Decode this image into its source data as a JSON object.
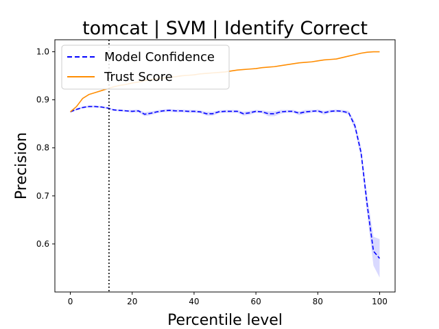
{
  "chart_data": {
    "type": "line",
    "title": "tomcat | SVM | Identify Correct",
    "xlabel": "Percentile level",
    "ylabel": "Precision",
    "xlim": [
      -5,
      105
    ],
    "ylim": [
      0.5,
      1.025
    ],
    "xticks": [
      0,
      20,
      40,
      60,
      80,
      100
    ],
    "yticks": [
      0.6,
      0.7,
      0.8,
      0.9,
      1.0
    ],
    "ytick_labels": [
      "0.6",
      "0.7",
      "0.8",
      "0.9",
      "1.0"
    ],
    "grid": false,
    "legend_position": "top-left",
    "vline_x": 12.5,
    "series": [
      {
        "name": "Model Confidence",
        "color": "#0000ff",
        "linestyle": "dashed",
        "band_color": "#0000ff",
        "x": [
          0,
          2,
          4,
          6,
          8,
          10,
          12,
          14,
          16,
          18,
          20,
          22,
          24,
          26,
          28,
          30,
          32,
          34,
          36,
          38,
          40,
          42,
          44,
          46,
          48,
          50,
          52,
          54,
          56,
          58,
          60,
          62,
          64,
          66,
          68,
          70,
          72,
          74,
          76,
          78,
          80,
          82,
          84,
          86,
          88,
          90,
          92,
          94,
          96,
          98,
          100
        ],
        "y": [
          0.875,
          0.88,
          0.884,
          0.886,
          0.886,
          0.885,
          0.883,
          0.879,
          0.878,
          0.877,
          0.876,
          0.877,
          0.87,
          0.872,
          0.875,
          0.877,
          0.878,
          0.877,
          0.877,
          0.876,
          0.876,
          0.875,
          0.871,
          0.871,
          0.875,
          0.876,
          0.876,
          0.876,
          0.871,
          0.873,
          0.876,
          0.875,
          0.871,
          0.871,
          0.875,
          0.876,
          0.876,
          0.872,
          0.875,
          0.876,
          0.877,
          0.873,
          0.876,
          0.877,
          0.876,
          0.873,
          0.846,
          0.79,
          0.68,
          0.585,
          0.57
        ],
        "lower": [
          0.873,
          0.878,
          0.882,
          0.884,
          0.884,
          0.883,
          0.881,
          0.877,
          0.876,
          0.875,
          0.873,
          0.874,
          0.866,
          0.868,
          0.872,
          0.874,
          0.875,
          0.874,
          0.874,
          0.873,
          0.873,
          0.872,
          0.867,
          0.867,
          0.872,
          0.873,
          0.873,
          0.873,
          0.867,
          0.869,
          0.873,
          0.872,
          0.866,
          0.866,
          0.871,
          0.873,
          0.873,
          0.868,
          0.871,
          0.873,
          0.874,
          0.869,
          0.873,
          0.874,
          0.873,
          0.869,
          0.838,
          0.778,
          0.66,
          0.555,
          0.53
        ],
        "upper": [
          0.877,
          0.882,
          0.886,
          0.888,
          0.888,
          0.887,
          0.885,
          0.881,
          0.88,
          0.879,
          0.879,
          0.88,
          0.874,
          0.876,
          0.878,
          0.88,
          0.881,
          0.88,
          0.88,
          0.879,
          0.879,
          0.878,
          0.875,
          0.875,
          0.878,
          0.879,
          0.879,
          0.879,
          0.875,
          0.877,
          0.879,
          0.878,
          0.876,
          0.876,
          0.879,
          0.879,
          0.879,
          0.876,
          0.879,
          0.879,
          0.88,
          0.877,
          0.879,
          0.88,
          0.879,
          0.877,
          0.854,
          0.802,
          0.7,
          0.615,
          0.61
        ]
      },
      {
        "name": "Trust Score",
        "color": "#ff8c00",
        "linestyle": "solid",
        "x": [
          0,
          2,
          4,
          6,
          8,
          10,
          12,
          14,
          16,
          18,
          20,
          22,
          24,
          26,
          28,
          30,
          32,
          34,
          36,
          38,
          40,
          42,
          44,
          46,
          48,
          50,
          52,
          54,
          56,
          58,
          60,
          62,
          64,
          66,
          68,
          70,
          72,
          74,
          76,
          78,
          80,
          82,
          84,
          86,
          88,
          90,
          92,
          94,
          96,
          98,
          100
        ],
        "y": [
          0.875,
          0.886,
          0.903,
          0.911,
          0.915,
          0.919,
          0.923,
          0.927,
          0.93,
          0.932,
          0.935,
          0.937,
          0.94,
          0.942,
          0.944,
          0.945,
          0.947,
          0.948,
          0.95,
          0.951,
          0.952,
          0.954,
          0.955,
          0.956,
          0.957,
          0.958,
          0.96,
          0.962,
          0.963,
          0.964,
          0.965,
          0.967,
          0.968,
          0.969,
          0.971,
          0.973,
          0.975,
          0.977,
          0.978,
          0.979,
          0.981,
          0.983,
          0.984,
          0.985,
          0.988,
          0.991,
          0.994,
          0.997,
          0.999,
          1.0,
          1.0
        ]
      }
    ]
  }
}
